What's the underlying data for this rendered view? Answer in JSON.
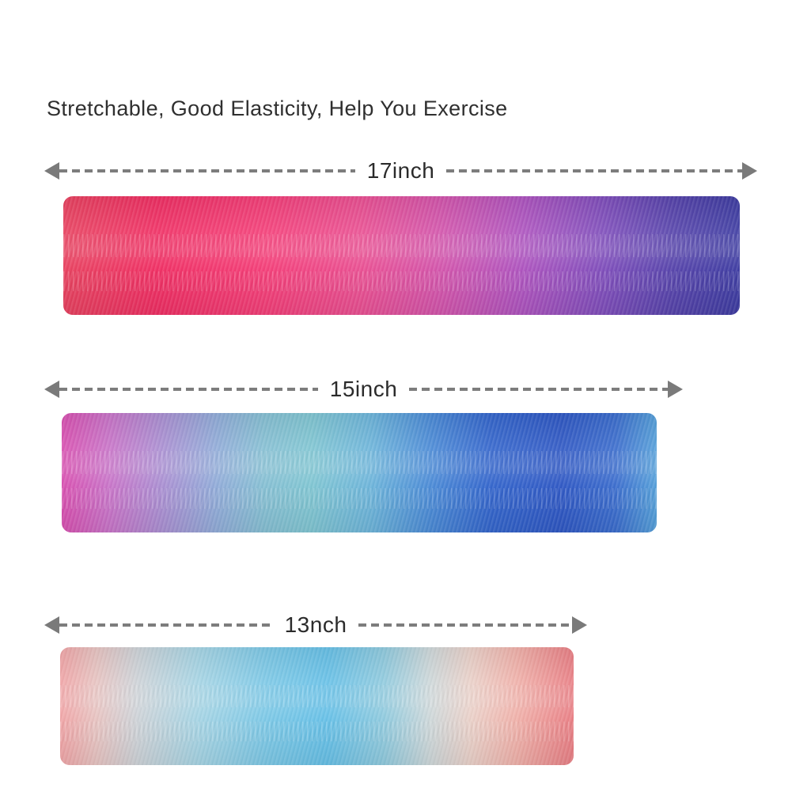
{
  "page": {
    "background": "#ffffff"
  },
  "title": {
    "text": "Stretchable, Good Elasticity, Help You Exercise",
    "color": "#2f2f2f"
  },
  "measure": {
    "line_color": "#7d7d7d",
    "arrow_color": "#7a7a7a",
    "label_color": "#2b2b2b"
  },
  "bands": [
    {
      "label": "17inch",
      "description": "pink-red to purple to indigo gradient band",
      "gradient": [
        "#e8415f 0%",
        "#f02e63 14%",
        "#f43e78 30%",
        "#ea4f92 44%",
        "#d254ac 56%",
        "#ad53bf 68%",
        "#7e4dbb 80%",
        "#5643ab 90%",
        "#3e3ca2 100%"
      ]
    },
    {
      "label": "15inch",
      "description": "magenta to teal to royal blue gradient band",
      "gradient": [
        "#d84fb0 0%",
        "#c873c8 8%",
        "#a98fd2 17%",
        "#90abd8 26%",
        "#85bfd3 34%",
        "#7fc5d2 42%",
        "#6cb4da 52%",
        "#4a8ad6 62%",
        "#3365cc 72%",
        "#2e57c4 84%",
        "#3a6ccd 93%",
        "#55a0da 100%"
      ]
    },
    {
      "label": "13nch",
      "description": "salmon to sky blue to coral gradient band",
      "gradient": [
        "#f0a4a6 0%",
        "#e7c3c1 7%",
        "#cdd2d7 15%",
        "#a5d4e4 27%",
        "#7cc8e6 40%",
        "#66c0e7 52%",
        "#8fcade 63%",
        "#cdd7d9 72%",
        "#ead0c8 80%",
        "#f0b0a9 89%",
        "#e97e84 100%"
      ]
    }
  ]
}
